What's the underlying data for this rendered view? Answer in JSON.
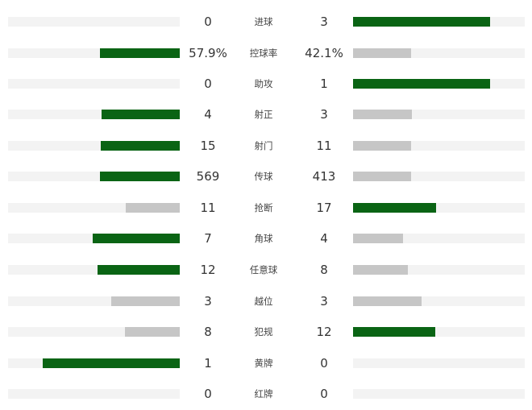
{
  "colors": {
    "leading": "#0a6414",
    "trailing": "#c6c6c6",
    "track": "#f3f3f3"
  },
  "stats": [
    {
      "label": "进球",
      "home": "0",
      "away": "3"
    },
    {
      "label": "控球率",
      "home": "57.9%",
      "away": "42.1%"
    },
    {
      "label": "助攻",
      "home": "0",
      "away": "1"
    },
    {
      "label": "射正",
      "home": "4",
      "away": "3"
    },
    {
      "label": "射门",
      "home": "15",
      "away": "11"
    },
    {
      "label": "传球",
      "home": "569",
      "away": "413"
    },
    {
      "label": "抢断",
      "home": "11",
      "away": "17"
    },
    {
      "label": "角球",
      "home": "7",
      "away": "4"
    },
    {
      "label": "任意球",
      "home": "12",
      "away": "8"
    },
    {
      "label": "越位",
      "home": "3",
      "away": "3"
    },
    {
      "label": "犯规",
      "home": "8",
      "away": "12"
    },
    {
      "label": "黄牌",
      "home": "1",
      "away": "0"
    },
    {
      "label": "红牌",
      "home": "0",
      "away": "0"
    }
  ]
}
